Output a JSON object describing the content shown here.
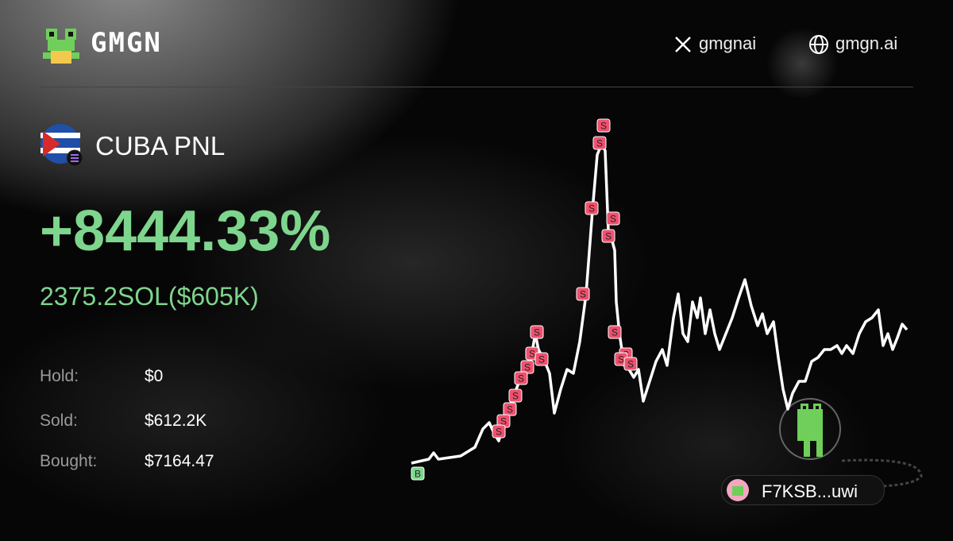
{
  "header": {
    "brand": "GMGN",
    "social": [
      {
        "label": "gmgnai"
      },
      {
        "label": "gmgn.ai"
      }
    ]
  },
  "token": {
    "name": "CUBA PNL"
  },
  "pnl": {
    "percent": "+8444.33%",
    "amount": "2375.2SOL($605K)"
  },
  "stats": [
    {
      "label": "Hold:",
      "value": "$0"
    },
    {
      "label": "Sold:",
      "value": "$612.2K"
    },
    {
      "label": "Bought:",
      "value": "$7164.47"
    }
  ],
  "chart": {
    "buy_marker": "B",
    "sell_marker": "S"
  },
  "wallet": "F7KSB...uwi"
}
